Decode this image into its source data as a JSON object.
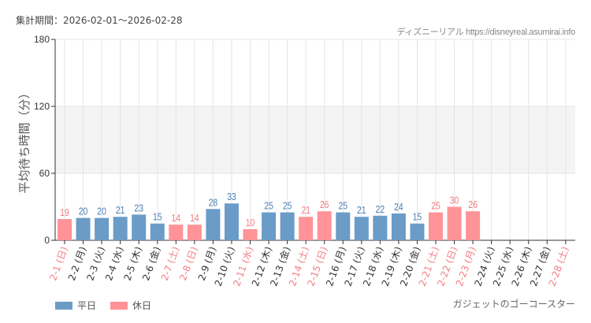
{
  "header": {
    "period": "集計期間：2026-02-01〜2026-02-28",
    "credit": "ディズニーリアル https://disneyreal.asumirai.info"
  },
  "attraction": "ガジェットのゴーコースター",
  "legend": {
    "weekday": "平日",
    "holiday": "休日"
  },
  "colors": {
    "weekday": "#6b9bc7",
    "holiday": "#ff9397",
    "weekday_label": "#4a7fb5",
    "holiday_label": "#f57c82",
    "band": "#f4f4f4"
  },
  "chart_data": {
    "type": "bar",
    "ylabel": "平均待ち時間（分）",
    "ylim": [
      0,
      180
    ],
    "yticks": [
      0,
      60,
      120,
      180
    ],
    "shaded_band": [
      60,
      120
    ],
    "grid": true,
    "legend_placement": "bottom-left",
    "categories": [
      "2-1 (日)",
      "2-2 (月)",
      "2-3 (火)",
      "2-4 (水)",
      "2-5 (木)",
      "2-6 (金)",
      "2-7 (土)",
      "2-8 (日)",
      "2-9 (月)",
      "2-10 (火)",
      "2-11 (水)",
      "2-12 (木)",
      "2-13 (金)",
      "2-14 (土)",
      "2-15 (日)",
      "2-16 (月)",
      "2-17 (火)",
      "2-18 (水)",
      "2-19 (木)",
      "2-20 (金)",
      "2-21 (土)",
      "2-22 (日)",
      "2-23 (月)",
      "2-24 (火)",
      "2-25 (水)",
      "2-26 (木)",
      "2-27 (金)",
      "2-28 (土)"
    ],
    "values": [
      19,
      20,
      20,
      21,
      23,
      15,
      14,
      14,
      28,
      33,
      10,
      25,
      25,
      21,
      26,
      25,
      21,
      22,
      24,
      15,
      25,
      30,
      26,
      null,
      null,
      null,
      null,
      null
    ],
    "holiday": [
      true,
      false,
      false,
      false,
      false,
      false,
      true,
      true,
      false,
      false,
      true,
      false,
      false,
      true,
      true,
      false,
      false,
      false,
      false,
      false,
      true,
      true,
      true,
      false,
      false,
      false,
      false,
      true
    ]
  }
}
